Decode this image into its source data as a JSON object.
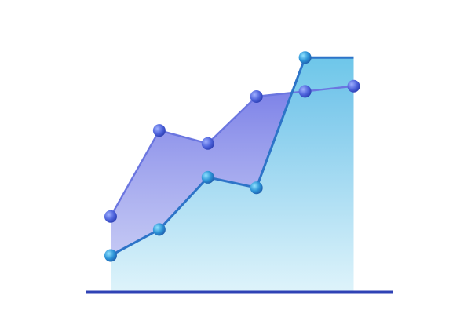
{
  "chart_data": {
    "type": "area",
    "ylim": [
      0,
      10
    ],
    "grid": false,
    "legend": "none",
    "series": [
      {
        "x": [
          1,
          2,
          3,
          4,
          5,
          6
        ],
        "values": [
          2.9,
          6.2,
          5.7,
          7.5,
          7.7,
          7.9
        ],
        "fill": "#7f86e4",
        "line": "#6b76e0",
        "marker": "#5566dd"
      },
      {
        "x": [
          1,
          2,
          3,
          4,
          5,
          6
        ],
        "values": [
          1.4,
          2.4,
          4.4,
          4.0,
          9.0,
          9.0
        ],
        "fill": "#6fc7e6",
        "line": "#2d74c8",
        "marker": "#2a86cf",
        "last_point_marker": false
      }
    ],
    "xlim": [
      0.5,
      6.8
    ],
    "colors": {
      "y_axis": "#29aacc",
      "x_axis": "#2f42b5"
    }
  }
}
